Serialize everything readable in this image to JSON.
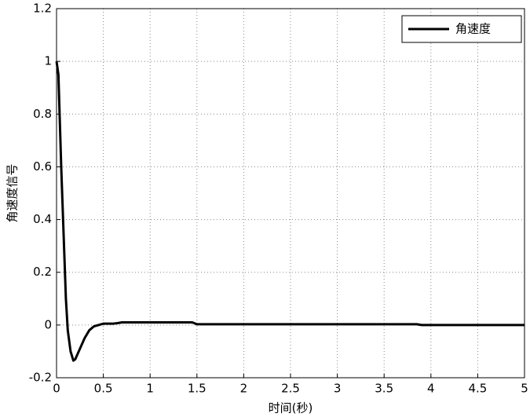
{
  "chart_data": {
    "type": "line",
    "x_label": "时间(秒)",
    "y_label": "角速度信号",
    "x": [
      0,
      0.02,
      0.05,
      0.08,
      0.1,
      0.12,
      0.15,
      0.18,
      0.2,
      0.25,
      0.3,
      0.35,
      0.4,
      0.5,
      0.6,
      0.65,
      0.7,
      1.0,
      1.45,
      1.5,
      2,
      3,
      3.85,
      3.9,
      5
    ],
    "series": [
      {
        "name": "角速度",
        "color": "#000000",
        "values": [
          1,
          0.95,
          0.6,
          0.3,
          0.1,
          -0.02,
          -0.1,
          -0.135,
          -0.13,
          -0.09,
          -0.05,
          -0.02,
          -0.005,
          0.005,
          0.005,
          0.007,
          0.01,
          0.01,
          0.01,
          0.003,
          0.003,
          0.003,
          0.003,
          0,
          0
        ]
      }
    ],
    "xlim": [
      0,
      5
    ],
    "xticks": [
      0,
      0.5,
      1,
      1.5,
      2,
      2.5,
      3,
      3.5,
      4,
      4.5,
      5
    ],
    "ylim": [
      -0.2,
      1.2
    ],
    "yticks": [
      -0.2,
      0,
      0.2,
      0.4,
      0.6,
      0.8,
      1,
      1.2
    ],
    "grid": true,
    "legend": "upper-right"
  }
}
